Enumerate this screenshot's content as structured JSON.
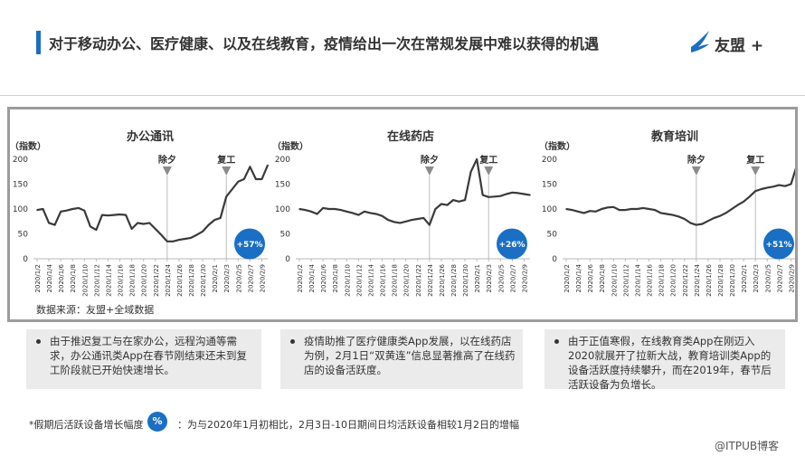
{
  "header": {
    "title": "对于移动办公、医疗健康、以及在线教育，疫情给出一次在常规发展中难以获得的机遇",
    "logo_text": "友盟 +"
  },
  "source": "数据来源：友盟+全域数据",
  "notes": [
    "由于推迟复工与在家办公，远程沟通等需求，办公通讯类App在春节刚结束还未到复工阶段就已开始快速增长。",
    "疫情助推了医疗健康类App发展，以在线药店为例，2月1日“双黄连”信息显著推高了在线药店的设备活跃度。",
    "由于正值寒假，在线教育类App在刚迈入2020就展开了拉新大战，教育培训类App的设备活跃度持续攀升，而在2019年，春节后活跃设备为负增长。"
  ],
  "footer": {
    "note": "*假期后活跃设备增长幅度",
    "badge": "%",
    "desc": "：为与2020年1月初相比，2月3日-10日期间日均活跃设备相较1月2日的增幅"
  },
  "watermark": "@ITPUB博客",
  "colors": {
    "accent": "#1a6fc4",
    "line": "#3a3a3a",
    "marker": "#8c8c8c"
  },
  "chart_data": [
    {
      "type": "line",
      "title": "办公通讯",
      "ylabel": "（指数）",
      "ylim": [
        0,
        200
      ],
      "yticks": [
        0,
        50,
        100,
        150,
        200
      ],
      "x_tick_labels": [
        "2020/1/2",
        "2020/1/4",
        "2020/1/6",
        "2020/1/8",
        "2020/1/10",
        "2020/1/12",
        "2020/1/14",
        "2020/1/16",
        "2020/1/18",
        "2020/1/20",
        "2020/1/22",
        "2020/1/24",
        "2020/1/26",
        "2020/1/28",
        "2020/1/30",
        "2020/2/1",
        "2020/2/3",
        "2020/2/5",
        "2020/2/7",
        "2020/2/9"
      ],
      "x_start": "2020/1/2",
      "values": [
        98,
        100,
        72,
        68,
        95,
        97,
        100,
        102,
        97,
        65,
        58,
        88,
        87,
        88,
        89,
        88,
        60,
        72,
        70,
        72,
        60,
        48,
        35,
        35,
        38,
        40,
        42,
        48,
        55,
        68,
        78,
        82,
        125,
        140,
        155,
        160,
        185,
        160,
        160,
        188
      ],
      "markers": [
        {
          "label": "除夕",
          "x": "2020/1/24"
        },
        {
          "label": "复工",
          "x": "2020/2/3"
        }
      ],
      "badge": "+57%"
    },
    {
      "type": "line",
      "title": "在线药店",
      "ylabel": "（指数）",
      "ylim": [
        0,
        200
      ],
      "yticks": [
        0,
        50,
        100,
        150,
        200
      ],
      "x_tick_labels": [
        "2020/1/2",
        "2020/1/4",
        "2020/1/6",
        "2020/1/8",
        "2020/1/10",
        "2020/1/12",
        "2020/1/14",
        "2020/1/16",
        "2020/1/18",
        "2020/1/20",
        "2020/1/22",
        "2020/1/24",
        "2020/1/26",
        "2020/1/28",
        "2020/1/30",
        "2020/2/1",
        "2020/2/3",
        "2020/2/5",
        "2020/2/7",
        "2020/2/9"
      ],
      "x_start": "2020/1/2",
      "values": [
        100,
        98,
        95,
        90,
        102,
        100,
        100,
        98,
        95,
        92,
        88,
        95,
        92,
        90,
        86,
        78,
        74,
        72,
        75,
        78,
        80,
        82,
        68,
        100,
        110,
        108,
        118,
        115,
        118,
        175,
        200,
        128,
        124,
        125,
        126,
        130,
        133,
        132,
        130,
        128
      ],
      "markers": [
        {
          "label": "除夕",
          "x": "2020/1/24"
        },
        {
          "label": "复工",
          "x": "2020/2/3"
        }
      ],
      "badge": "+26%"
    },
    {
      "type": "line",
      "title": "教育培训",
      "ylabel": "（指数）",
      "ylim": [
        0,
        200
      ],
      "yticks": [
        0,
        50,
        100,
        150,
        200
      ],
      "x_tick_labels": [
        "2020/1/2",
        "2020/1/4",
        "2020/1/6",
        "2020/1/8",
        "2020/1/10",
        "2020/1/12",
        "2020/1/14",
        "2020/1/16",
        "2020/1/18",
        "2020/1/20",
        "2020/1/22",
        "2020/1/24",
        "2020/1/26",
        "2020/1/28",
        "2020/1/30",
        "2020/2/1",
        "2020/2/3",
        "2020/2/5",
        "2020/2/7",
        "2020/2/9"
      ],
      "x_start": "2020/1/2",
      "values": [
        100,
        98,
        95,
        92,
        96,
        95,
        100,
        103,
        104,
        98,
        98,
        100,
        100,
        102,
        100,
        98,
        92,
        90,
        88,
        85,
        80,
        72,
        68,
        70,
        76,
        82,
        86,
        92,
        100,
        108,
        115,
        125,
        136,
        140,
        143,
        145,
        148,
        146,
        150,
        188
      ],
      "markers": [
        {
          "label": "除夕",
          "x": "2020/1/24"
        },
        {
          "label": "复工",
          "x": "2020/2/3"
        }
      ],
      "badge": "+51%"
    }
  ]
}
